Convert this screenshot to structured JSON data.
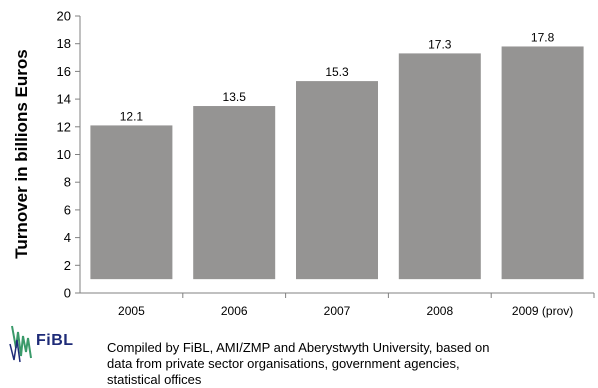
{
  "chart_data": {
    "type": "bar",
    "title": "",
    "xlabel": "",
    "ylabel": "Turnover in billions Euros",
    "categories": [
      "2005",
      "2006",
      "2007",
      "2008",
      "2009 (prov)"
    ],
    "values": [
      12.1,
      13.5,
      15.3,
      17.3,
      17.8
    ],
    "data_labels": [
      "12.1",
      "13.5",
      "15.3",
      "17.3",
      "17.8"
    ],
    "ylim": [
      0,
      20
    ],
    "yticks": [
      "0",
      "2",
      "4",
      "6",
      "8",
      "10",
      "12",
      "14",
      "16",
      "18",
      "20"
    ],
    "grid": false,
    "legend": "none",
    "colors": {
      "bar": "#959493",
      "axis": "#808080"
    }
  },
  "footer": {
    "logo_text": "FiBL",
    "source_line1": "Compiled by FiBL, AMI/ZMP and Aberystwyth University, based on",
    "source_line2": "data from private sector organisations, government agencies,",
    "source_line3": "statistical offices"
  }
}
